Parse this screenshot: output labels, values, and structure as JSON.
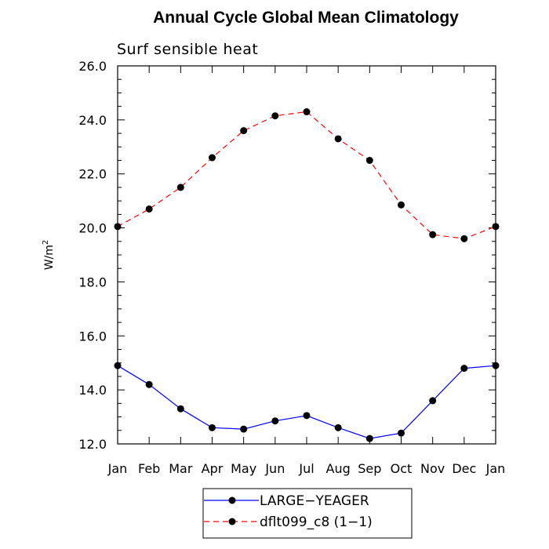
{
  "chart_data": {
    "type": "line",
    "title": "Annual Cycle Global Mean Climatology",
    "subtitle": "Surf sensible heat",
    "xlabel": "",
    "ylabel": "W/m",
    "ylabel_superscript": "2",
    "ylim": [
      12.0,
      26.0
    ],
    "yticks": [
      "12.0",
      "14.0",
      "16.0",
      "18.0",
      "20.0",
      "22.0",
      "24.0",
      "26.0"
    ],
    "categories": [
      "Jan",
      "Feb",
      "Mar",
      "Apr",
      "May",
      "Jun",
      "Jul",
      "Aug",
      "Sep",
      "Oct",
      "Nov",
      "Dec",
      "Jan"
    ],
    "grid": false,
    "legend_position": "bottom",
    "series": [
      {
        "name": "LARGE−YEAGER",
        "color": "#0000ff",
        "line_style": "solid",
        "values": [
          14.9,
          14.2,
          13.3,
          12.6,
          12.55,
          12.85,
          13.05,
          12.6,
          12.2,
          12.4,
          13.6,
          14.8,
          14.9
        ]
      },
      {
        "name": "dflt099_c8 (1−1)",
        "color": "#ff0000",
        "line_style": "dashed",
        "values": [
          20.05,
          20.7,
          21.5,
          22.6,
          23.6,
          24.15,
          24.3,
          23.3,
          22.5,
          20.85,
          19.75,
          19.6,
          20.05
        ]
      }
    ]
  }
}
